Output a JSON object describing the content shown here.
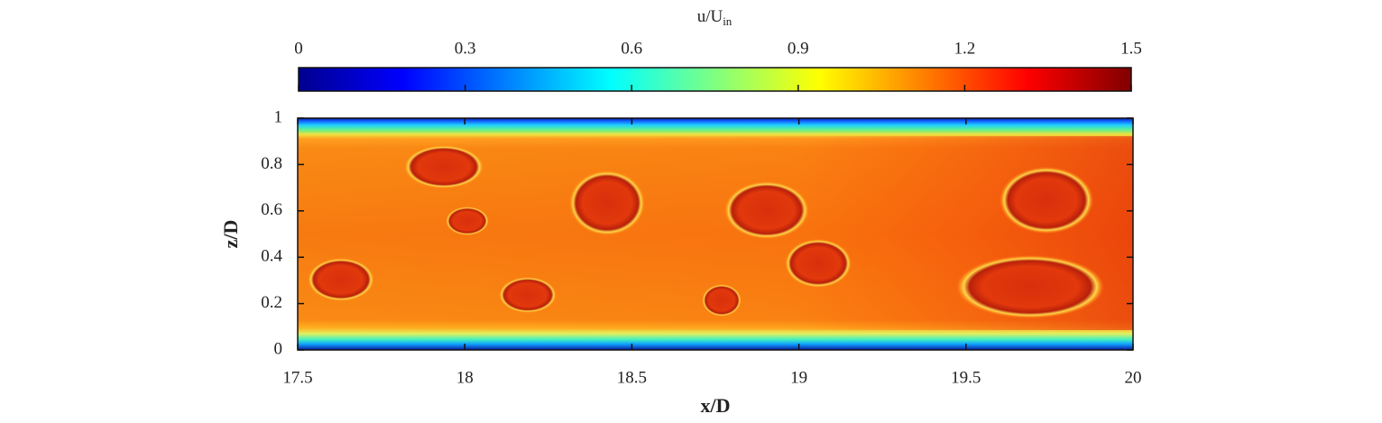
{
  "chart_data": {
    "type": "contour",
    "xlabel": "x/D",
    "ylabel": "z/D",
    "xlim": [
      17.5,
      20
    ],
    "xticks": [
      17.5,
      18,
      18.5,
      19,
      19.5,
      20
    ],
    "ylim": [
      0,
      1
    ],
    "yticks": [
      0,
      0.2,
      0.4,
      0.6,
      0.8,
      1
    ],
    "colorbar": {
      "label": "u/U",
      "label_subscript": "in",
      "lim": [
        0,
        1.5
      ],
      "ticks": [
        0,
        0.3,
        0.6,
        0.9,
        1.2,
        1.5
      ],
      "colormap": "jet"
    }
  }
}
